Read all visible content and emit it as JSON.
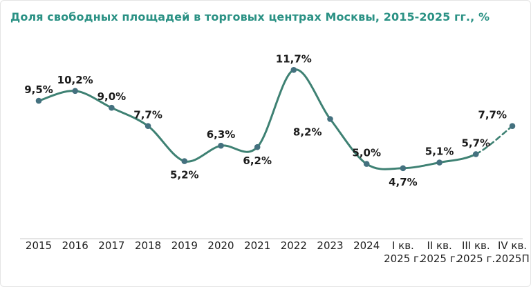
{
  "page": {
    "background": "#ffffff",
    "border_color": "#e4e4e4"
  },
  "chart_data": {
    "type": "line",
    "title": "Доля свободных площадей в торговых центрах Москвы, 2015-2025 гг., %",
    "title_color": "#2a9184",
    "xlabel": "",
    "ylabel": "",
    "ylim": [
      4,
      12.5
    ],
    "grid": false,
    "legend": "none",
    "line_color": "#3e8173",
    "marker_color": "#44717f",
    "label_color": "#1b1b1b",
    "tick_color": "#1f1f1f",
    "axis_color": "#c9c9c9",
    "forecast_from_index": 12,
    "points": [
      {
        "category": "2015",
        "category_line2": "",
        "value": 9.5,
        "label": "9,5%",
        "label_position": "above"
      },
      {
        "category": "2016",
        "category_line2": "",
        "value": 10.2,
        "label": "10,2%",
        "label_position": "above"
      },
      {
        "category": "2017",
        "category_line2": "",
        "value": 9.0,
        "label": "9,0%",
        "label_position": "above"
      },
      {
        "category": "2018",
        "category_line2": "",
        "value": 7.7,
        "label": "7,7%",
        "label_position": "above"
      },
      {
        "category": "2019",
        "category_line2": "",
        "value": 5.2,
        "label": "5,2%",
        "label_position": "below"
      },
      {
        "category": "2020",
        "category_line2": "",
        "value": 6.3,
        "label": "6,3%",
        "label_position": "above"
      },
      {
        "category": "2021",
        "category_line2": "",
        "value": 6.2,
        "label": "6,2%",
        "label_position": "below"
      },
      {
        "category": "2022",
        "category_line2": "",
        "value": 11.7,
        "label": "11,7%",
        "label_position": "above"
      },
      {
        "category": "2023",
        "category_line2": "",
        "value": 8.2,
        "label": "8,2%",
        "label_position": "below-left"
      },
      {
        "category": "2024",
        "category_line2": "",
        "value": 5.0,
        "label": "5,0%",
        "label_position": "above"
      },
      {
        "category": "I кв.",
        "category_line2": "2025 г.",
        "value": 4.7,
        "label": "4,7%",
        "label_position": "below"
      },
      {
        "category": "II кв.",
        "category_line2": "2025 г.",
        "value": 5.1,
        "label": "5,1%",
        "label_position": "above"
      },
      {
        "category": "III кв.",
        "category_line2": "2025 г.",
        "value": 5.7,
        "label": "5,7%",
        "label_position": "above"
      },
      {
        "category": "IV кв.",
        "category_line2": "2025П",
        "value": 7.7,
        "label": "7,7%",
        "label_position": "above-left"
      }
    ]
  }
}
